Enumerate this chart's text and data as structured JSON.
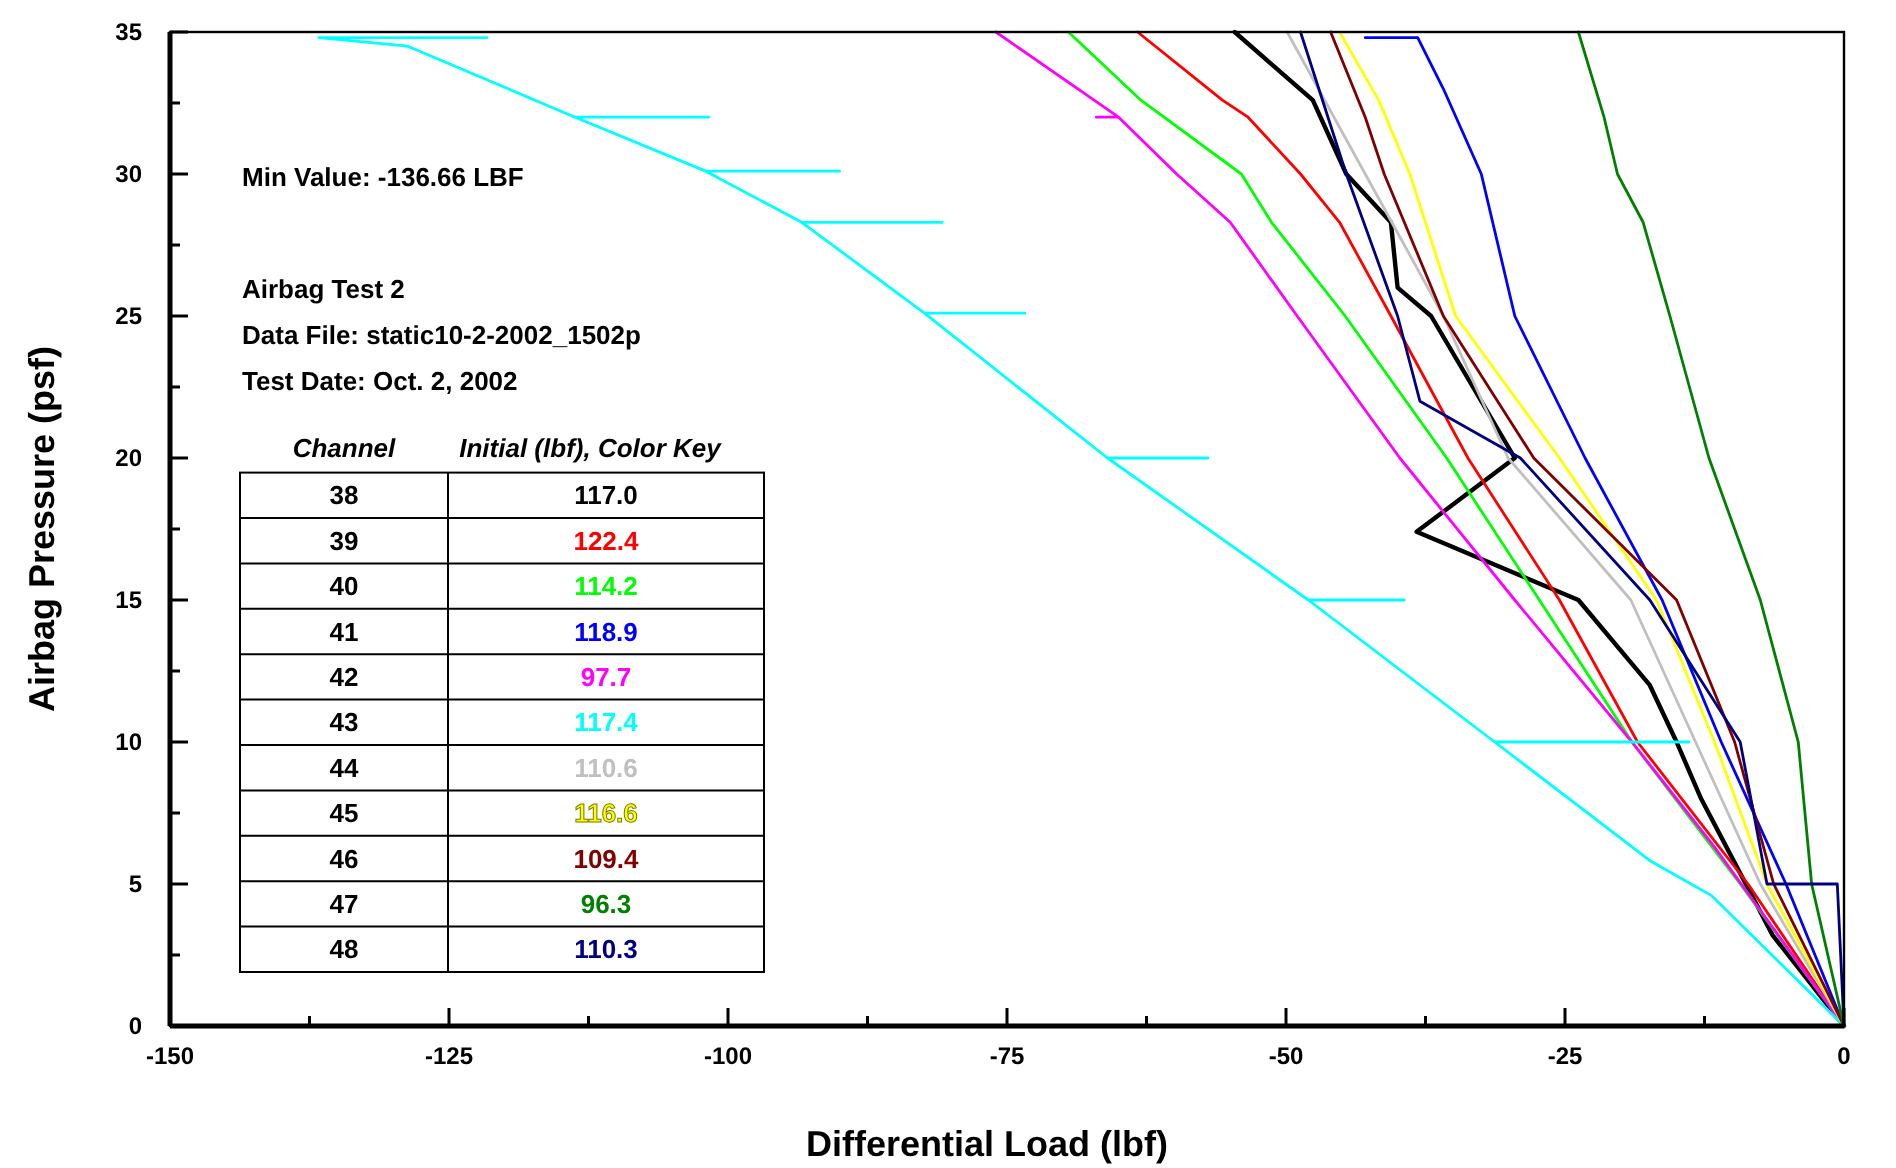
{
  "chart_data": {
    "type": "line",
    "xlabel": "Differential Load (lbf)",
    "ylabel": "Airbag Pressure (psf)",
    "xlim": [
      -150,
      0
    ],
    "ylim": [
      0,
      35
    ],
    "xticks": [
      -150,
      {
        "value": -137.5,
        "label": null
      },
      -125,
      {
        "value": -112.5,
        "label": null
      },
      -100,
      {
        "value": -87.5,
        "label": null
      },
      -75,
      {
        "value": -62.5,
        "label": null
      },
      -50,
      {
        "value": -37.5,
        "label": null
      },
      -25,
      {
        "value": -12.5,
        "label": null
      },
      0
    ],
    "yticks": [
      0,
      {
        "value": 2.5,
        "label": null
      },
      5,
      {
        "value": 7.5,
        "label": null
      },
      10,
      {
        "value": 12.5,
        "label": null
      },
      15,
      {
        "value": 17.5,
        "label": null
      },
      20,
      {
        "value": 22.5,
        "label": null
      },
      25,
      {
        "value": 27.5,
        "label": null
      },
      30,
      {
        "value": 32.5,
        "label": null
      },
      35
    ],
    "grid": false,
    "legend": "bottom left",
    "legend_title": "Initial (lbf), Color Key",
    "line_style": "solid",
    "marker": "none",
    "annotations": [
      "Min Value: -136.66 LBF",
      "Airbag Test 2",
      "Data File: static10-2-2002_1502p",
      "Test Date: Oct. 2, 2002",
      "Channel",
      "38",
      "39",
      "40",
      "41",
      "42",
      "43",
      "44",
      "45",
      "46",
      "47",
      "48"
    ],
    "series": [
      {
        "name": "117.0",
        "color": "#000000",
        "x": [
          0,
          -6.4,
          -12.8,
          -15,
          -17.4,
          -23.8,
          -38.3,
          -29.5,
          -37,
          -40,
          -40.6,
          -44.6,
          -47.6,
          -54.6
        ],
        "values": [
          0,
          3.2,
          8,
          10,
          12,
          15,
          17.4,
          20,
          25,
          26,
          28.3,
          30,
          32.6,
          35
        ]
      },
      {
        "name": "122.4",
        "color": "#ff0000",
        "x": [
          0,
          -8.6,
          -18.5,
          -25.5,
          -33.7,
          -40.6,
          -45.2,
          -48.7,
          -53.4,
          -55.7,
          -63.3
        ],
        "values": [
          0,
          5,
          10,
          15,
          20,
          25,
          28.3,
          30,
          32,
          32.6,
          35
        ]
      },
      {
        "name": "114.2",
        "color": "#00ff00",
        "x": [
          0,
          -9.3,
          -19,
          -27.3,
          -35.6,
          -44.7,
          -51.3,
          -54,
          -63,
          -69.5
        ],
        "values": [
          0,
          5,
          10,
          15,
          20,
          25,
          28.3,
          30,
          32.6,
          35
        ]
      },
      {
        "name": "118.9",
        "color": "#0000ff",
        "x": [
          0,
          -5.2,
          -11,
          -16.3,
          -23.2,
          -29.5,
          -32.5,
          -35.9,
          -38.2,
          -42.9
        ],
        "values": [
          0,
          5,
          10,
          15,
          20,
          25,
          30,
          33,
          34.8,
          34.8
        ]
      },
      {
        "name": "97.7",
        "color": "#ff00ff",
        "x": [
          0,
          -11.6,
          -19,
          -29.5,
          -39.8,
          -49,
          -55,
          -59.8,
          -65,
          -67,
          -65,
          -76
        ],
        "values": [
          0,
          6.3,
          10,
          15,
          20,
          25,
          28.3,
          30,
          32,
          32,
          32,
          35
        ]
      },
      {
        "name": "117.4",
        "color": "#00ffff",
        "x": [
          0,
          -11.9,
          -17.3,
          -31.3,
          -13.9,
          -31.3,
          -48,
          -39.4,
          -48,
          -66,
          -57,
          -66,
          -82.4,
          -73.4,
          -82.4,
          -93.4,
          -80.8,
          -93.4,
          -102,
          -90,
          -102,
          -113.7,
          -101.7,
          -113.7,
          -128.7,
          -136.66,
          -121.6
        ],
        "values": [
          0,
          4.6,
          5.8,
          10,
          10,
          10,
          15,
          15,
          15,
          20,
          20,
          20,
          25.1,
          25.1,
          25.1,
          28.3,
          28.3,
          28.3,
          30.1,
          30.1,
          30.1,
          32,
          32,
          32,
          34.5,
          34.8,
          34.8
        ]
      },
      {
        "name": "110.6",
        "color": "#c0c0c0",
        "x": [
          0,
          -7.5,
          -13.3,
          -19.1,
          -30.1,
          -35.9,
          -42.9,
          -49.9
        ],
        "values": [
          0,
          5,
          10,
          15,
          20,
          25,
          30,
          35
        ]
      },
      {
        "name": "116.6",
        "color": "#ffff00",
        "x": [
          0,
          -6.9,
          -11.6,
          -16.8,
          -25.5,
          -34.8,
          -38.9,
          -41.7,
          -45.2
        ],
        "values": [
          0,
          5,
          10,
          15,
          20,
          25,
          30,
          32.6,
          35
        ]
      },
      {
        "name": "109.4",
        "color": "#800000",
        "x": [
          0,
          -6.3,
          -9.8,
          -15,
          -27.8,
          -35.9,
          -41.2,
          -42.9,
          -46
        ],
        "values": [
          0,
          5,
          10,
          15,
          20,
          25,
          30,
          32,
          35
        ]
      },
      {
        "name": "96.3",
        "color": "#008000",
        "x": [
          0,
          -2.9,
          -4.1,
          -7.5,
          -12.1,
          -15.6,
          -18,
          -20.3,
          -21.5,
          -23.8
        ],
        "values": [
          0,
          5,
          10,
          15,
          20,
          25,
          28.3,
          30,
          32,
          35
        ]
      },
      {
        "name": "110.3",
        "color": "#000080",
        "x": [
          0,
          -0.6,
          -6.9,
          -9.3,
          -17.4,
          -29,
          -38,
          -40,
          -44.6,
          -48.7
        ],
        "values": [
          0,
          5,
          5,
          10,
          15,
          20,
          22,
          25,
          30,
          35
        ]
      }
    ]
  }
}
